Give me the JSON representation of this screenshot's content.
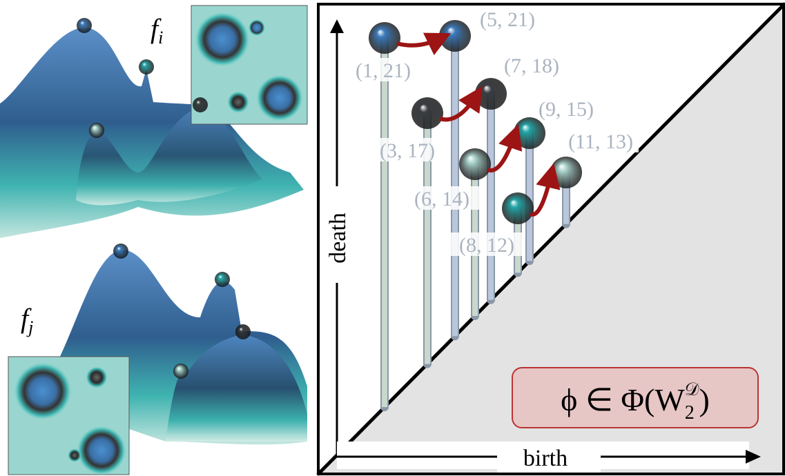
{
  "terrain_labels": [
    {
      "symbol": "f",
      "subscript": "i"
    },
    {
      "symbol": "f",
      "subscript": "j"
    }
  ],
  "axes": {
    "y_label": "death",
    "x_label": "birth"
  },
  "points": [
    {
      "label": "(1, 21)",
      "color": "#3b7bbd"
    },
    {
      "label": "(5, 21)",
      "color": "#3b7bbd"
    },
    {
      "label": "(3, 17)",
      "color": "#3a3d41"
    },
    {
      "label": "(7, 18)",
      "color": "#3a3d41"
    },
    {
      "label": "(6, 14)",
      "color": "#a9d3cb"
    },
    {
      "label": "(9, 15)",
      "color": "#23a6a8"
    },
    {
      "label": "(8, 12)",
      "color": "#23a6a8"
    },
    {
      "label": "(11, 13)",
      "color": "#a9d3cb"
    }
  ],
  "formula": {
    "main": "ϕ ∈ Φ(W",
    "subscript": "2",
    "superscript": "𝒟",
    "close": ")"
  }
}
